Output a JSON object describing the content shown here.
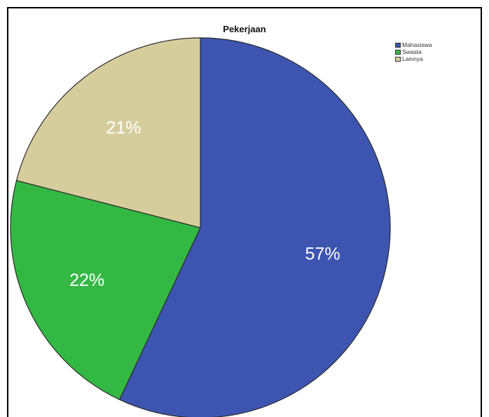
{
  "chart_data": {
    "type": "pie",
    "title": "Pekerjaan",
    "categories": [
      "Mahasiswa",
      "Swasta",
      "Lainnya"
    ],
    "values": [
      57,
      22,
      21
    ],
    "labels": [
      "57%",
      "22%",
      "21%"
    ],
    "colors": [
      "#3d55b0",
      "#34b844",
      "#d6cd9d"
    ],
    "legend_position": "top-right"
  }
}
